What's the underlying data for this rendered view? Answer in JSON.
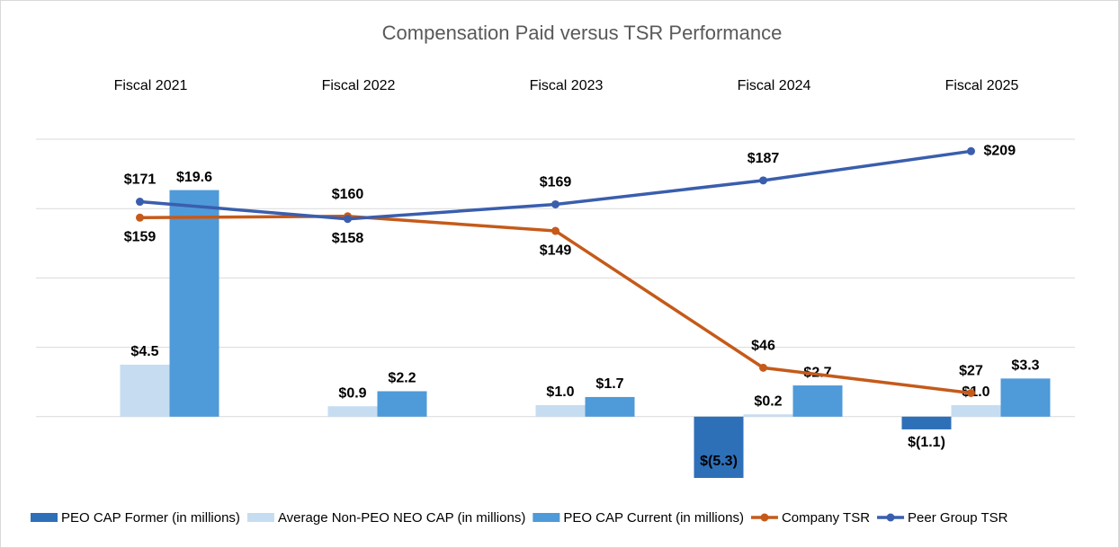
{
  "chart_data": {
    "type": "bar-line",
    "title": "Compensation Paid versus TSR Performance",
    "categories": [
      "Fiscal 2021",
      "Fiscal 2022",
      "Fiscal 2023",
      "Fiscal 2024",
      "Fiscal 2025"
    ],
    "ylim": [
      -6,
      24
    ],
    "yticks": [
      0,
      6,
      12,
      18,
      24
    ],
    "y2lim": [
      -43,
      218
    ],
    "grid": true,
    "legend": "bottom",
    "series": [
      {
        "name": "PEO CAP Former (in millions)",
        "type": "bar",
        "color": "#2e70b8",
        "values": [
          null,
          null,
          null,
          -5.3,
          -1.1
        ],
        "value_labels": [
          null,
          null,
          null,
          "$(5.3)",
          "$(1.1)"
        ]
      },
      {
        "name": "Average Non-PEO NEO CAP (in millions)",
        "type": "bar",
        "color": "#c6ddf1",
        "values": [
          4.5,
          0.9,
          1.0,
          0.2,
          1.0
        ],
        "value_labels": [
          "$4.5",
          "$0.9",
          "$1.0",
          "$0.2",
          "$1.0"
        ]
      },
      {
        "name": "PEO CAP Current (in millions)",
        "type": "bar",
        "color": "#4f9ad8",
        "values": [
          19.6,
          2.2,
          1.7,
          2.7,
          3.3
        ],
        "value_labels": [
          "$19.6",
          "$2.2",
          "$1.7",
          "$2.7",
          "$3.3"
        ]
      },
      {
        "name": "Company TSR",
        "type": "line",
        "axis": "y2",
        "color": "#c55a1a",
        "values": [
          159,
          160,
          149,
          46,
          27
        ],
        "value_labels": [
          "$159",
          "$160",
          "$149",
          "$46",
          "$27"
        ]
      },
      {
        "name": "Peer Group TSR",
        "type": "line",
        "axis": "y2",
        "color": "#3a5ead",
        "values": [
          171,
          158,
          169,
          187,
          209
        ],
        "value_labels": [
          "$171",
          "$158",
          "$169",
          "$187",
          "$209"
        ]
      }
    ]
  }
}
